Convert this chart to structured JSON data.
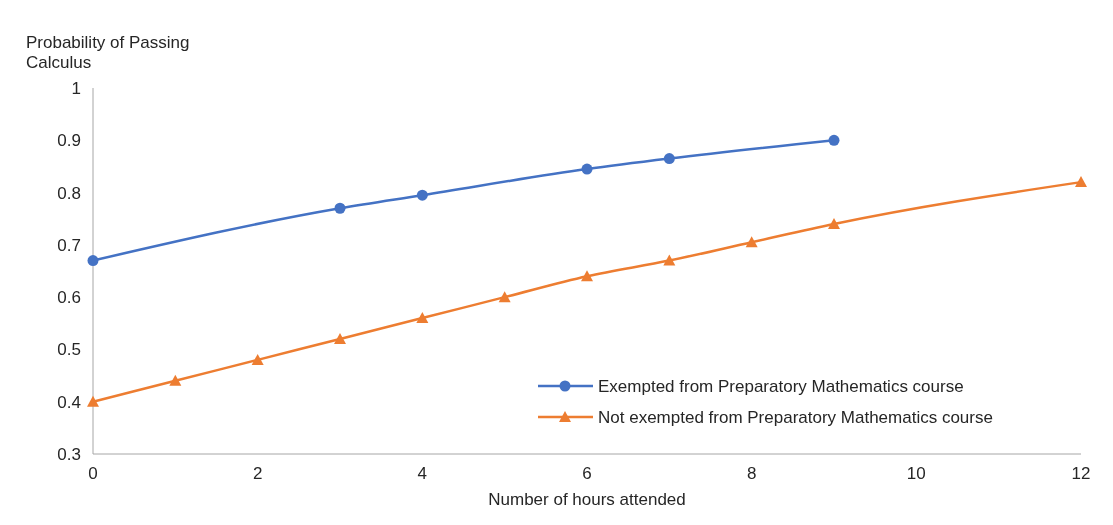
{
  "chart_data": {
    "type": "line",
    "ylabel": "Probability of Passing Calculus",
    "xlabel": "Number of hours attended",
    "xlim": [
      0,
      12
    ],
    "xticks": [
      0,
      2,
      4,
      6,
      8,
      10,
      12
    ],
    "ylim": [
      0.3,
      1
    ],
    "yticks": [
      0.3,
      0.4,
      0.5,
      0.6,
      0.7,
      0.8,
      0.9,
      1
    ],
    "grid": false,
    "legend": "bottom right",
    "series": [
      {
        "name": "Exempted from Preparatory Mathematics course",
        "color": "#4472c4",
        "marker": "circle",
        "x": [
          0,
          3,
          4,
          6,
          7,
          9
        ],
        "values": [
          0.67,
          0.77,
          0.795,
          0.845,
          0.865,
          0.9
        ]
      },
      {
        "name": "Not exempted from Preparatory Mathematics course",
        "color": "#ed7d31",
        "marker": "triangle",
        "x": [
          0,
          1,
          2,
          3,
          4,
          5,
          6,
          7,
          8,
          9,
          12
        ],
        "values": [
          0.4,
          0.44,
          0.48,
          0.52,
          0.56,
          0.6,
          0.64,
          0.67,
          0.705,
          0.74,
          0.82
        ]
      }
    ]
  }
}
